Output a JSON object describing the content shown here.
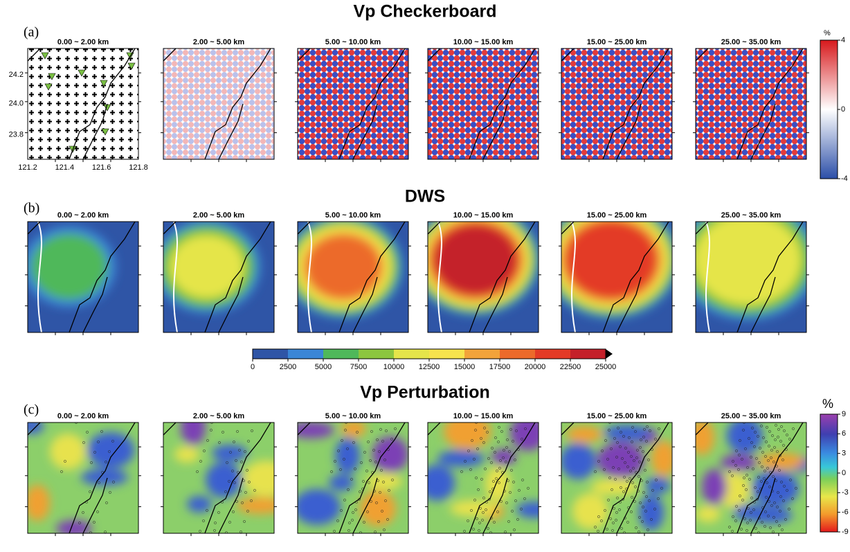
{
  "rows": [
    {
      "label": "(a)",
      "title": "Vp Checkerboard",
      "panels": [
        "0.00 ~  2.00 km",
        "2.00 ~  5.00 km",
        "5.00 ~ 10.00 km",
        "10.00 ~ 15.00 km",
        "15.00 ~ 25.00 km",
        "25.00 ~ 35.00 km"
      ]
    },
    {
      "label": "(b)",
      "title": "DWS",
      "panels": [
        "0.00 ~  2.00 km",
        "2.00 ~  5.00 km",
        "5.00 ~ 10.00 km",
        "10.00 ~ 15.00 km",
        "15.00 ~ 25.00 km",
        "25.00 ~ 35.00 km"
      ]
    },
    {
      "label": "(c)",
      "title": "Vp Perturbation",
      "panels": [
        "0.00 ~  2.00 km",
        "2.00 ~  5.00 km",
        "5.00 ~ 10.00 km",
        "10.00 ~ 15.00 km",
        "15.00 ~ 25.00 km",
        "25.00 ~ 35.00 km"
      ]
    }
  ],
  "map_axes": {
    "yticks": [
      "24.2",
      "24.0",
      "23.8"
    ],
    "xticks": [
      "121.2",
      "121.4",
      "121.6",
      "121.8"
    ]
  },
  "colorbars": {
    "checkerboard": {
      "unit": "%",
      "ticks": [
        "4",
        "0",
        "-4"
      ]
    },
    "dws": {
      "ticks": [
        "0",
        "2500",
        "5000",
        "7500",
        "10000",
        "12500",
        "15000",
        "17500",
        "20000",
        "22500",
        "25000"
      ]
    },
    "perturbation": {
      "unit": "%",
      "ticks": [
        "9",
        "6",
        "3",
        "0",
        "-3",
        "-6",
        "-9"
      ]
    }
  }
}
